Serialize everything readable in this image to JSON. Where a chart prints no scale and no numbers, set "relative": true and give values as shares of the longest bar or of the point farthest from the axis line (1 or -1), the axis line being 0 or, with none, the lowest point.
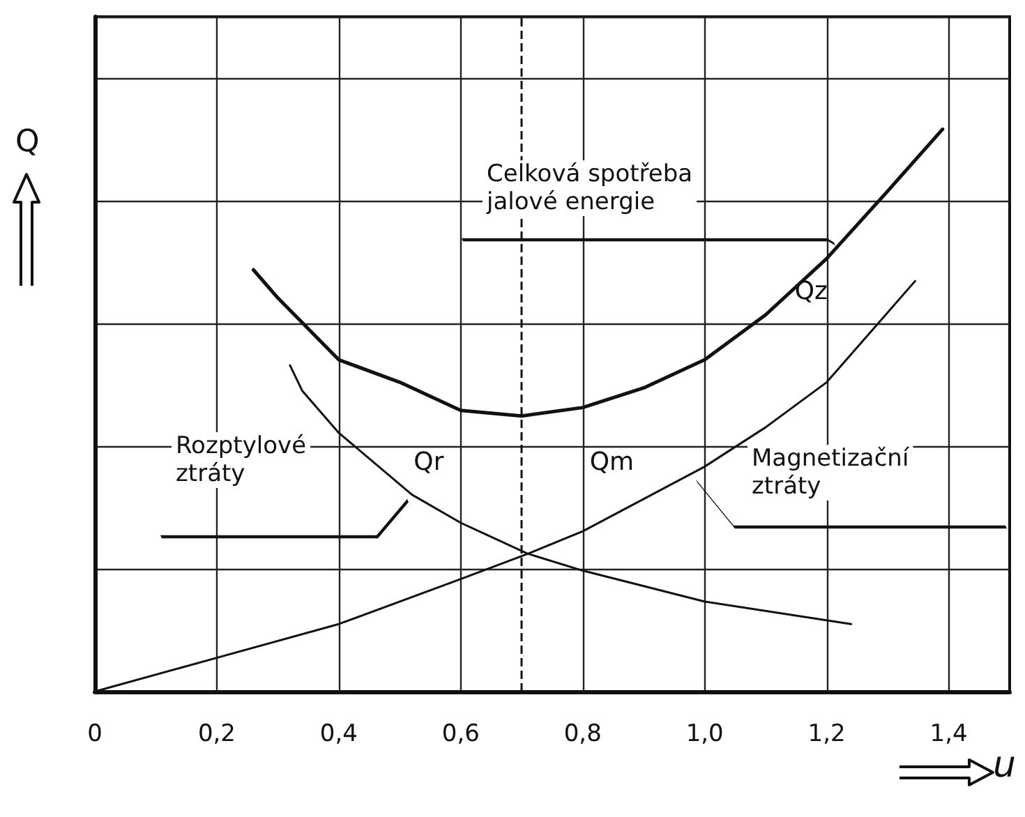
{
  "chart_data": {
    "type": "line",
    "relative": true,
    "xlabel": "u",
    "ylabel": "Q",
    "xlim": [
      0,
      1.5
    ],
    "xticks": [
      0,
      {
        "value": 0.2,
        "label": "0,2"
      },
      {
        "value": 0.4,
        "label": "0,4"
      },
      {
        "value": 0.6,
        "label": "0,6"
      },
      {
        "value": 0.8,
        "label": "0,8"
      },
      {
        "value": 1.0,
        "label": "1,0"
      },
      {
        "value": 1.2,
        "label": "1,2"
      },
      {
        "value": 1.4,
        "label": "1,4"
      }
    ],
    "series": [
      {
        "name": "Qz",
        "color": "#111111",
        "x": [
          0.26,
          0.3,
          0.4,
          0.5,
          0.6,
          0.7,
          0.8,
          0.9,
          1.0,
          1.1,
          1.2,
          1.3,
          1.39
        ],
        "values": [
          0.75,
          0.7,
          0.59,
          0.55,
          0.5,
          0.49,
          0.505,
          0.54,
          0.59,
          0.67,
          0.77,
          0.89,
          1.0
        ]
      },
      {
        "name": "Qr",
        "color": "#111111",
        "x": [
          0.32,
          0.34,
          0.4,
          0.52,
          0.6,
          0.71,
          0.8,
          1.0,
          1.24
        ],
        "values": [
          0.58,
          0.535,
          0.46,
          0.35,
          0.3,
          0.245,
          0.215,
          0.16,
          0.12
        ]
      },
      {
        "name": "Qm",
        "color": "#111111",
        "x": [
          0,
          0.2,
          0.4,
          0.6,
          0.71,
          0.8,
          1.0,
          1.1,
          1.2,
          1.345
        ],
        "values": [
          0,
          0.06,
          0.12,
          0.2,
          0.245,
          0.285,
          0.4,
          0.47,
          0.55,
          0.73
        ]
      }
    ],
    "ref_lines": [
      {
        "axis": "x",
        "value": 0.7,
        "line_style": "dashed",
        "color": "#111111"
      }
    ],
    "annotations": [
      "Celková spotřeba jalové energie",
      "Rozptylové ztráty",
      "Magnetizační ztráty"
    ],
    "grid": true,
    "marker": "none",
    "line_style": "solid",
    "legend": false
  }
}
